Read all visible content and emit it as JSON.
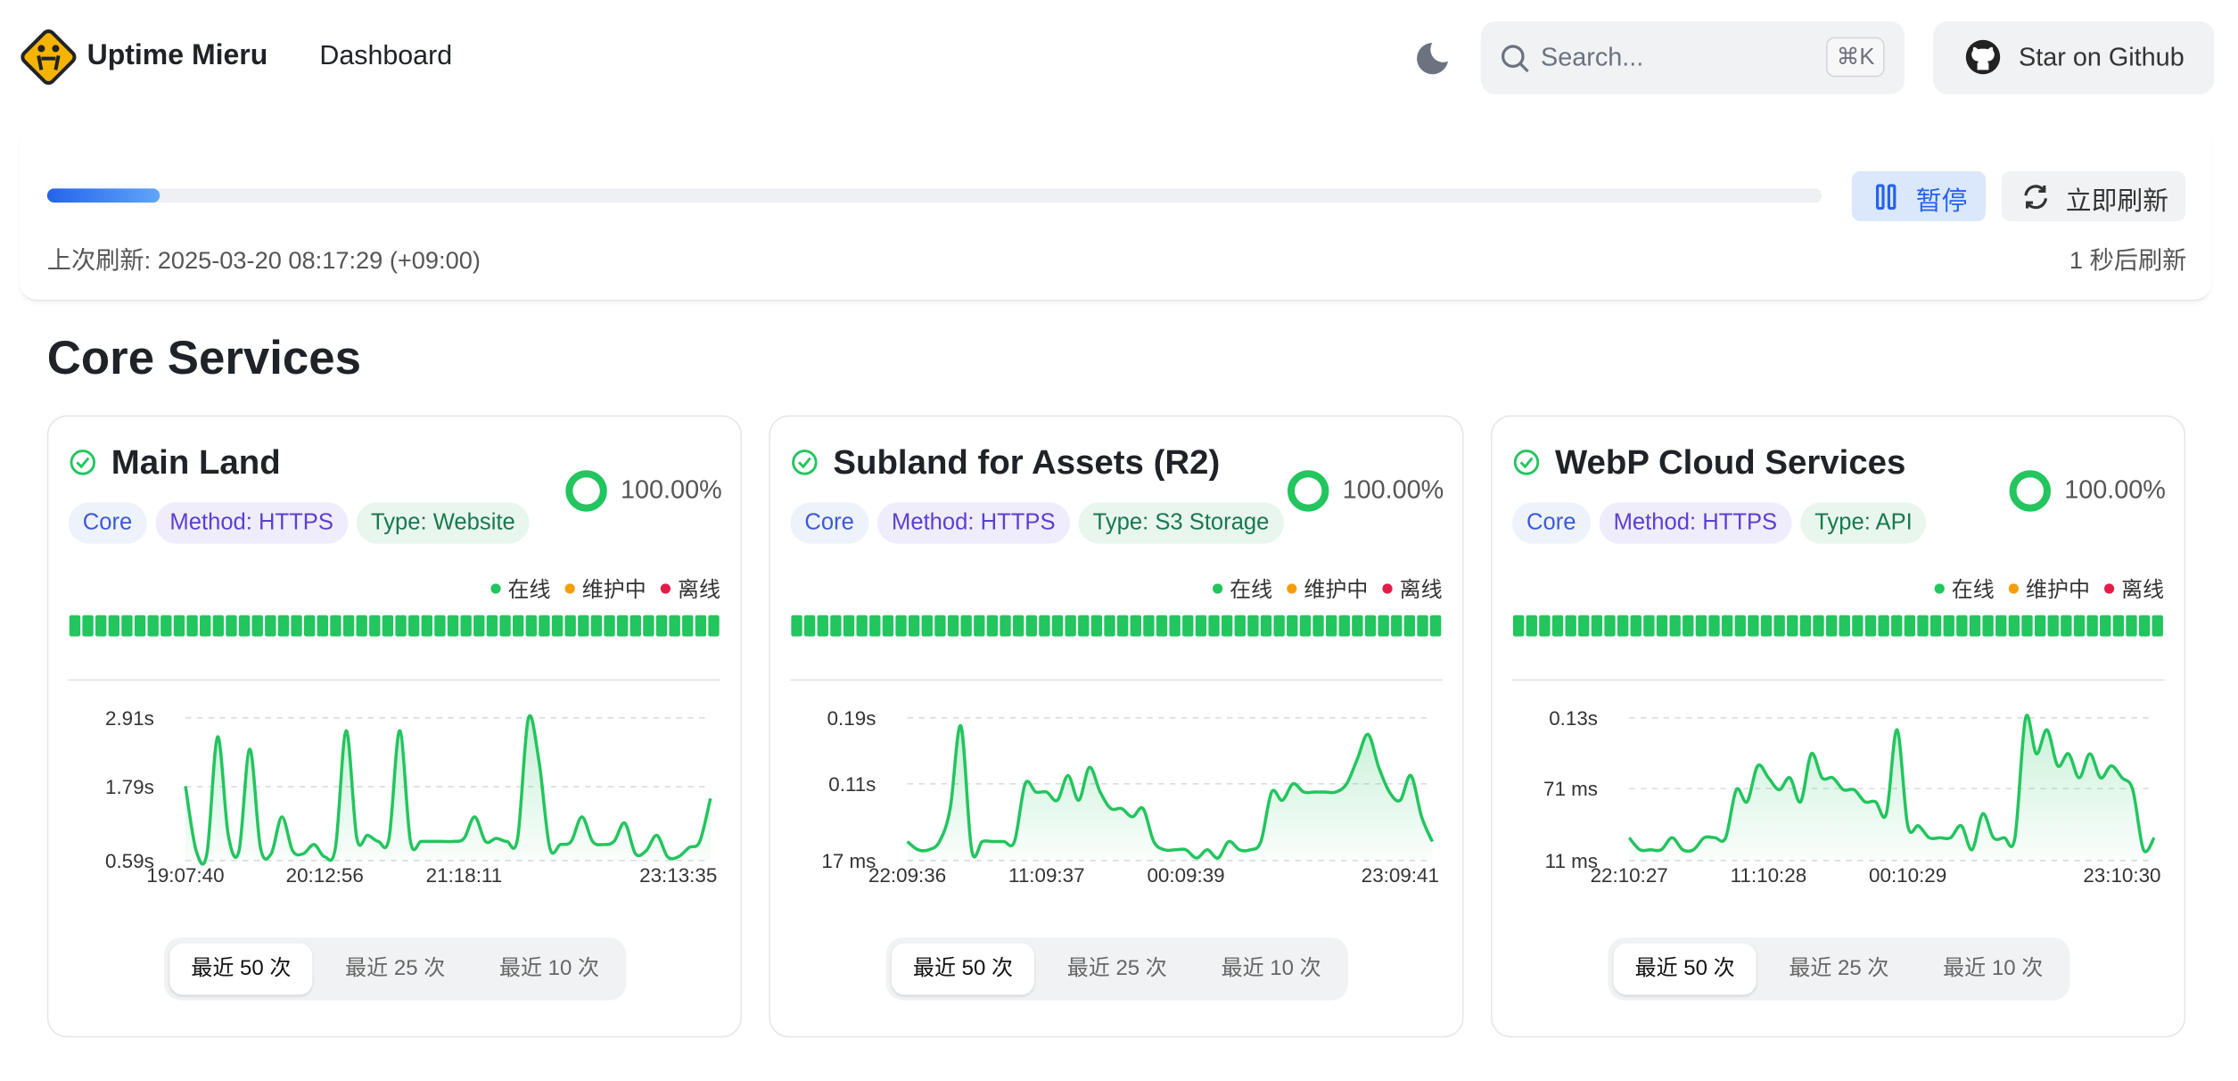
{
  "header": {
    "brand": "Uptime Mieru",
    "nav": "Dashboard",
    "search_placeholder": "Search...",
    "shortcut": "⌘K",
    "github": "Star on Github"
  },
  "refresh": {
    "pause": "暂停",
    "refresh_now": "立即刷新",
    "last_refresh": "上次刷新: 2025-03-20 08:17:29 (+09:00)",
    "countdown": "1 秒后刷新"
  },
  "section_title": "Core Services",
  "legend": [
    "在线",
    "维护中",
    "离线"
  ],
  "range_options": [
    "最近 50 次",
    "最近 25 次",
    "最近 10 次"
  ],
  "cards": [
    {
      "title": "Main Land",
      "tags": [
        "Core",
        "Method: HTTPS",
        "Type: Website"
      ],
      "uptime": "100.00%",
      "chart_data": {
        "type": "line",
        "color": "#22c55e",
        "categories": [
          "19:07:40",
          null,
          null,
          null,
          null,
          null,
          null,
          null,
          null,
          null,
          null,
          null,
          null,
          "20:12:56",
          null,
          null,
          null,
          null,
          null,
          null,
          null,
          null,
          null,
          null,
          null,
          null,
          "21:18:11",
          null,
          null,
          null,
          null,
          null,
          null,
          null,
          null,
          null,
          null,
          null,
          null,
          null,
          null,
          null,
          null,
          null,
          null,
          null,
          "23:13:35",
          null,
          null,
          null
        ],
        "values": [
          1.8,
          0.75,
          0.7,
          2.6,
          1.0,
          0.75,
          2.4,
          0.8,
          0.7,
          1.3,
          0.75,
          0.7,
          0.85,
          0.65,
          0.8,
          2.7,
          0.95,
          1.0,
          0.9,
          0.95,
          2.7,
          0.9,
          0.9,
          0.9,
          0.9,
          0.9,
          0.95,
          1.3,
          0.9,
          0.95,
          0.9,
          0.95,
          2.9,
          2.2,
          0.8,
          0.85,
          0.9,
          1.3,
          0.9,
          0.85,
          0.9,
          1.2,
          0.7,
          0.75,
          1.0,
          0.65,
          0.65,
          0.8,
          0.9,
          1.6
        ],
        "ylim": [
          0.59,
          2.91
        ],
        "yticks": [
          {
            "value": 0.59,
            "label": "0.59s"
          },
          {
            "value": 1.79,
            "label": "1.79s"
          },
          {
            "value": 2.91,
            "label": "2.91s"
          }
        ],
        "grid": true
      }
    },
    {
      "title": "Subland for Assets (R2)",
      "tags": [
        "Core",
        "Method: HTTPS",
        "Type: S3 Storage"
      ],
      "uptime": "100.00%",
      "chart_data": {
        "type": "line",
        "color": "#22c55e",
        "categories": [
          "22:09:36",
          null,
          null,
          null,
          null,
          null,
          null,
          null,
          null,
          null,
          null,
          null,
          null,
          "11:09:37",
          null,
          null,
          null,
          null,
          null,
          null,
          null,
          null,
          null,
          null,
          null,
          null,
          "00:09:39",
          null,
          null,
          null,
          null,
          null,
          null,
          null,
          null,
          null,
          null,
          null,
          null,
          null,
          null,
          null,
          null,
          null,
          null,
          null,
          "23:09:41",
          null,
          null,
          null
        ],
        "values": [
          0.04,
          0.03,
          0.03,
          0.04,
          0.08,
          0.18,
          0.03,
          0.04,
          0.04,
          0.04,
          0.04,
          0.11,
          0.1,
          0.1,
          0.09,
          0.12,
          0.09,
          0.13,
          0.1,
          0.08,
          0.08,
          0.07,
          0.08,
          0.04,
          0.03,
          0.03,
          0.03,
          0.02,
          0.03,
          0.02,
          0.04,
          0.03,
          0.03,
          0.04,
          0.1,
          0.09,
          0.11,
          0.1,
          0.1,
          0.1,
          0.1,
          0.11,
          0.14,
          0.17,
          0.13,
          0.1,
          0.09,
          0.12,
          0.07,
          0.04
        ],
        "ylim": [
          0.017,
          0.19
        ],
        "yticks": [
          {
            "value": 0.017,
            "label": "17 ms"
          },
          {
            "value": 0.11,
            "label": "0.11s"
          },
          {
            "value": 0.19,
            "label": "0.19s"
          }
        ],
        "grid": true
      }
    },
    {
      "title": "WebP Cloud Services",
      "tags": [
        "Core",
        "Method: HTTPS",
        "Type: API"
      ],
      "uptime": "100.00%",
      "chart_data": {
        "type": "line",
        "color": "#22c55e",
        "categories": [
          "22:10:27",
          null,
          null,
          null,
          null,
          null,
          null,
          null,
          null,
          null,
          null,
          null,
          null,
          "11:10:28",
          null,
          null,
          null,
          null,
          null,
          null,
          null,
          null,
          null,
          null,
          null,
          null,
          "00:10:29",
          null,
          null,
          null,
          null,
          null,
          null,
          null,
          null,
          null,
          null,
          null,
          null,
          null,
          null,
          null,
          null,
          null,
          null,
          null,
          "23:10:30",
          null,
          null,
          null
        ],
        "values": [
          0.03,
          0.02,
          0.02,
          0.02,
          0.03,
          0.02,
          0.02,
          0.03,
          0.03,
          0.03,
          0.07,
          0.06,
          0.09,
          0.08,
          0.07,
          0.08,
          0.06,
          0.1,
          0.08,
          0.08,
          0.07,
          0.07,
          0.06,
          0.06,
          0.05,
          0.12,
          0.04,
          0.04,
          0.03,
          0.03,
          0.03,
          0.04,
          0.02,
          0.05,
          0.03,
          0.03,
          0.03,
          0.13,
          0.1,
          0.12,
          0.09,
          0.1,
          0.08,
          0.1,
          0.08,
          0.09,
          0.08,
          0.07,
          0.02,
          0.03
        ],
        "ylim": [
          0.011,
          0.13
        ],
        "yticks": [
          {
            "value": 0.011,
            "label": "11 ms"
          },
          {
            "value": 0.071,
            "label": "71 ms"
          },
          {
            "value": 0.13,
            "label": "0.13s"
          }
        ],
        "grid": true
      }
    }
  ]
}
